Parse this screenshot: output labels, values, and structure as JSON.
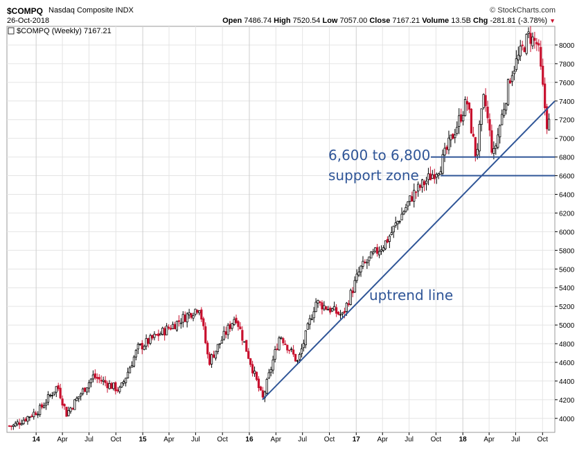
{
  "header": {
    "symbol": "$COMPQ",
    "name": "Nasdaq Composite INDX",
    "brand": "© StockCharts.com",
    "date": "26-Oct-2018",
    "open_label": "Open",
    "open": "7486.74",
    "high_label": "High",
    "high": "7520.54",
    "low_label": "Low",
    "low": "7057.00",
    "close_label": "Close",
    "close": "7167.21",
    "volume_label": "Volume",
    "volume": "13.5B",
    "chg_label": "Chg",
    "chg": "-281.81 (-3.78%)"
  },
  "legend": "$COMPQ (Weekly) 7167.21",
  "colors": {
    "up": "#000000",
    "down": "#c8102e",
    "annotation": "#2f5597",
    "grid": "#e4e4e4"
  },
  "annotations": {
    "zone_line1": "6,600 to 6,800",
    "zone_line2": "support zone",
    "trend_label": "uptrend line"
  },
  "chart_data": {
    "type": "candlestick",
    "title": "$COMPQ Nasdaq Composite INDX",
    "ylim": [
      3850,
      8200
    ],
    "y_ticks": [
      4000,
      4200,
      4400,
      4600,
      4800,
      5000,
      5200,
      5400,
      5600,
      5800,
      6000,
      6200,
      6400,
      6600,
      6800,
      7000,
      7200,
      7400,
      7600,
      7800,
      8000
    ],
    "x_ticks": [
      "14",
      "Apr",
      "Jul",
      "Oct",
      "15",
      "Apr",
      "Jul",
      "Oct",
      "16",
      "Apr",
      "Jul",
      "Oct",
      "17",
      "Apr",
      "Jul",
      "Oct",
      "18",
      "Apr",
      "Jul",
      "Oct"
    ],
    "key_points": [
      {
        "date": "2013-10",
        "close": 3920
      },
      {
        "date": "2014-01",
        "close": 4100
      },
      {
        "date": "2014-03",
        "close": 4350
      },
      {
        "date": "2014-04",
        "close": 4050
      },
      {
        "date": "2014-07",
        "close": 4450
      },
      {
        "date": "2014-10",
        "close": 4300
      },
      {
        "date": "2014-12",
        "close": 4750
      },
      {
        "date": "2015-04",
        "close": 5000
      },
      {
        "date": "2015-07",
        "close": 5200
      },
      {
        "date": "2015-08",
        "close": 4600
      },
      {
        "date": "2015-11",
        "close": 5100
      },
      {
        "date": "2016-02",
        "close": 4200
      },
      {
        "date": "2016-04",
        "close": 4900
      },
      {
        "date": "2016-06",
        "close": 4600
      },
      {
        "date": "2016-08",
        "close": 5250
      },
      {
        "date": "2016-11",
        "close": 5100
      },
      {
        "date": "2017-01",
        "close": 5600
      },
      {
        "date": "2017-04",
        "close": 5900
      },
      {
        "date": "2017-07",
        "close": 6400
      },
      {
        "date": "2017-10",
        "close": 6700
      },
      {
        "date": "2018-01",
        "close": 7400
      },
      {
        "date": "2018-02",
        "close": 6800
      },
      {
        "date": "2018-03",
        "close": 7450
      },
      {
        "date": "2018-04",
        "close": 6800
      },
      {
        "date": "2018-06",
        "close": 7700
      },
      {
        "date": "2018-08",
        "close": 8100
      },
      {
        "date": "2018-09",
        "close": 8000
      },
      {
        "date": "2018-10",
        "close": 7167
      }
    ],
    "support_levels": [
      6600,
      6800
    ],
    "trendline": {
      "from": {
        "date": "2016-02",
        "value": 4200
      },
      "to": {
        "date": "2018-10",
        "value": 7400
      }
    }
  }
}
